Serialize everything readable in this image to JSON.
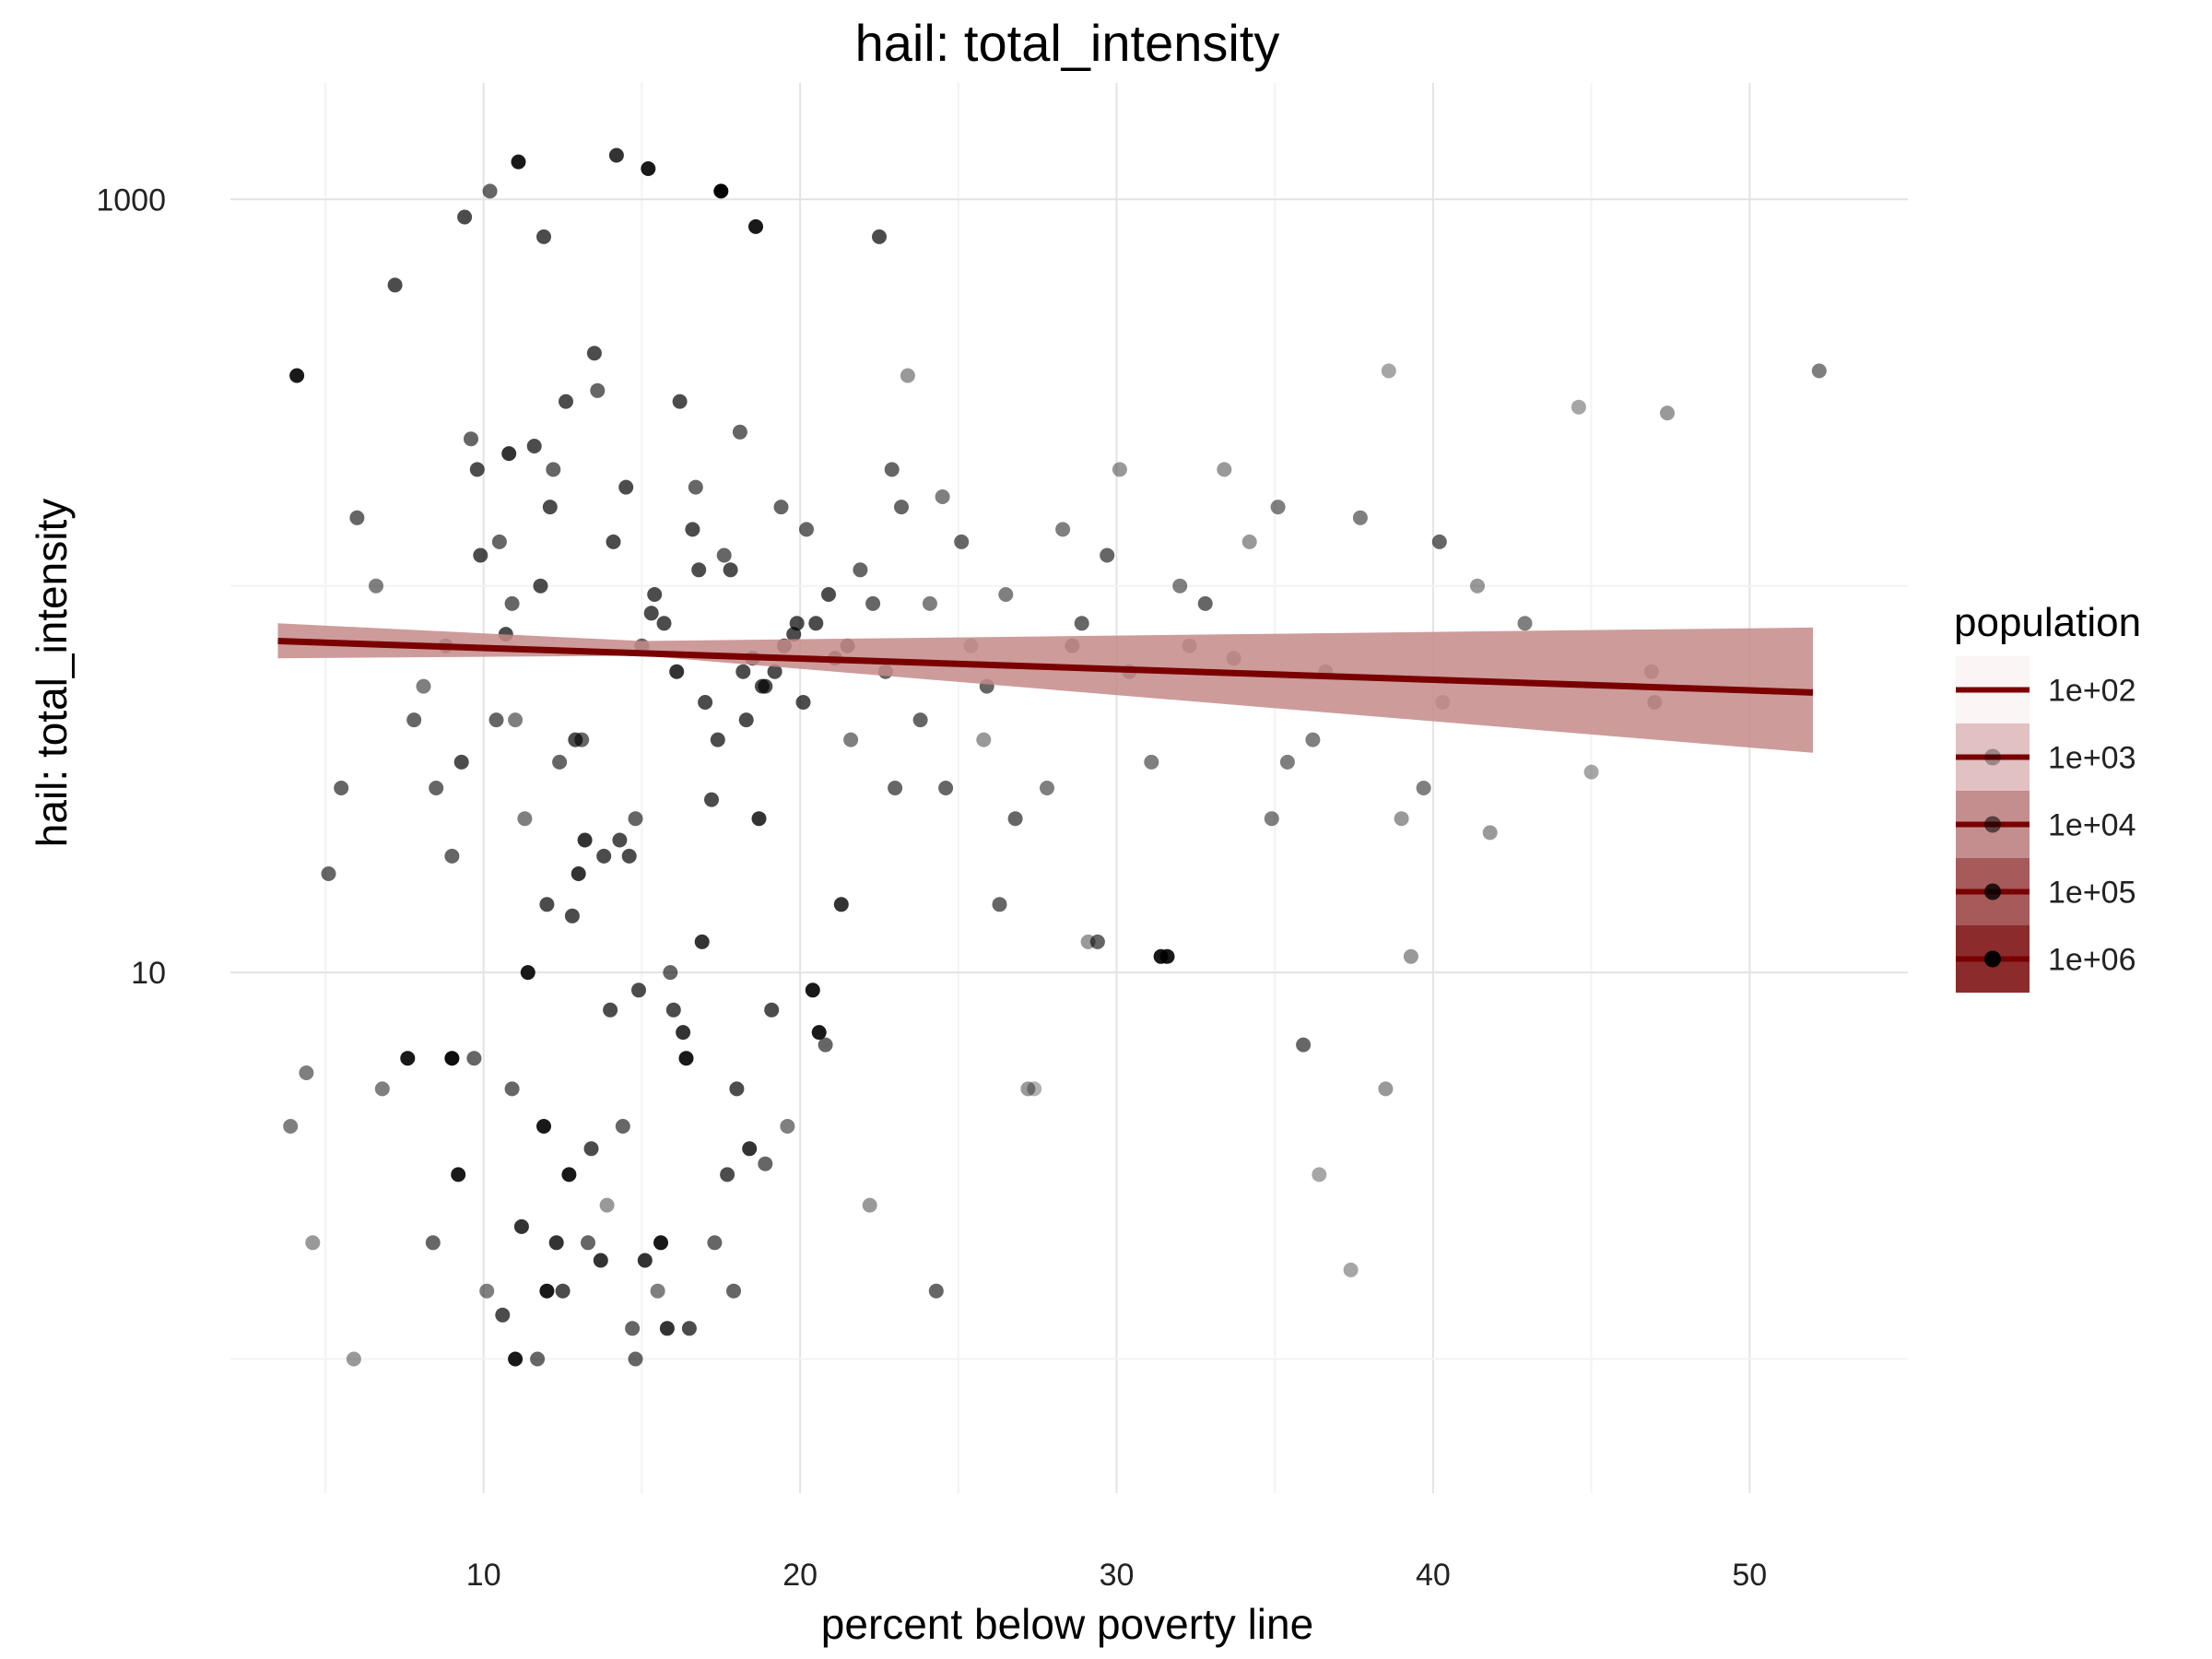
{
  "chart_data": {
    "type": "scatter",
    "title": "hail: total_intensity",
    "xlabel": "percent below poverty line",
    "ylabel": "hail: total_intensity",
    "x_scale": "linear",
    "y_scale": "log10",
    "xlim": [
      2,
      55
    ],
    "ylim": [
      0.45,
      2000
    ],
    "x_ticks": [
      10,
      20,
      30,
      40,
      50
    ],
    "x_tick_labels": [
      "10",
      "20",
      "30",
      "40",
      "50"
    ],
    "y_ticks": [
      10,
      1000
    ],
    "y_tick_labels": [
      "10",
      "1000"
    ],
    "y_minor_gridlines": [
      1,
      100
    ],
    "x_minor_gridlines": [
      5,
      15,
      25,
      35,
      45
    ],
    "grid": true,
    "legend": {
      "title": "population",
      "position": "right",
      "entries": [
        "1e+02",
        "1e+03",
        "1e+04",
        "1e+05",
        "1e+06"
      ],
      "point_alphas": [
        0.0,
        0.3,
        0.55,
        0.8,
        1.0
      ],
      "ribbon_colors": [
        "#fbf5f5",
        "#e1c1c1",
        "#c48e8e",
        "#a65a5a",
        "#8b2b2b"
      ]
    },
    "trend_line": {
      "color": "#7a0000",
      "points": [
        {
          "x": 3.5,
          "y": 72
        },
        {
          "x": 52,
          "y": 53
        }
      ],
      "ribbon_color": "#c58a8a",
      "ribbon_lower": [
        {
          "x": 3.5,
          "y": 65
        },
        {
          "x": 15,
          "y": 66
        },
        {
          "x": 52,
          "y": 37
        }
      ],
      "ribbon_upper": [
        {
          "x": 3.5,
          "y": 80
        },
        {
          "x": 15,
          "y": 72
        },
        {
          "x": 52,
          "y": 78
        }
      ]
    },
    "point_color": "#000000",
    "series": [
      {
        "name": "population",
        "x": [
          4.1,
          3.9,
          6.0,
          7.2,
          8.5,
          9.0,
          9.4,
          10.2,
          10.8,
          11.1,
          11.9,
          12.2,
          13.1,
          13.9,
          14.2,
          14.8,
          15.2,
          15.9,
          16.7,
          17.5,
          18.1,
          18.6,
          19.4,
          20.8,
          22.5,
          23.4,
          24.5,
          25.4,
          26.5,
          27.2,
          28.3,
          29.1,
          30.1,
          31.6,
          32.3,
          33.4,
          34.2,
          35.1,
          36.2,
          38.6,
          39.3,
          40.2,
          41.4,
          42.9,
          44.6,
          47.4,
          52.2,
          46.9,
          47.0,
          45.0,
          41.8,
          39.0,
          38.5,
          37.4,
          36.4,
          35.9,
          31.4,
          29.4,
          27.4,
          25.8,
          24.3,
          22.2,
          20.6,
          19.6,
          18.4,
          17.3,
          16.4,
          15.5,
          14.7,
          13.3,
          12.0,
          11.0,
          10.1,
          9.2,
          8.4,
          7.6,
          6.8,
          5.9,
          5.1,
          4.6,
          4.4,
          5.5,
          6.6,
          7.8,
          8.8,
          9.8,
          10.9,
          12.1,
          13.6,
          15.0,
          16.2,
          17.6,
          18.9,
          20.2,
          21.6,
          22.9,
          24.1,
          25.9,
          27.8,
          29.7,
          31.1,
          32.8,
          34.9,
          36.6,
          37.7,
          39.7,
          40.3,
          11.3,
          12.8,
          14.3,
          16.0,
          17.2,
          18.3,
          19.2,
          20.5,
          21.9,
          23.2,
          9.6,
          10.5,
          11.6,
          12.6,
          13.5,
          14.5,
          15.4,
          16.6,
          17.8,
          18.8,
          19.8,
          21.1,
          22.3,
          23.8,
          25.1,
          26.8,
          28.6,
          30.4,
          32.0,
          33.7,
          35.4,
          8.1,
          9.0,
          9.9,
          10.7,
          11.8,
          12.9,
          14.1,
          15.7,
          17.0,
          18.2,
          19.5,
          20.9,
          22.7,
          24.6,
          26.3,
          28.9,
          11.0,
          12.4,
          13.8,
          15.3,
          16.8,
          18.5,
          20.1,
          21.5,
          23.0,
          10.4,
          12.0,
          13.2,
          14.6,
          16.1,
          17.4,
          18.7,
          19.9,
          9.3,
          11.4,
          13.0,
          14.9,
          16.9,
          19.1,
          21.3,
          9.7,
          11.9,
          14.0,
          16.3,
          18.0,
          20.4,
          10.9,
          12.7,
          14.4,
          17.7,
          11.2,
          13.4,
          15.6,
          18.9,
          12.3,
          15.1,
          17.9,
          10.6,
          13.7,
          16.5,
          12.5,
          15.8,
          11.7,
          14.8
        ],
        "y": [
          350,
          4,
          150,
          600,
          30,
          6,
          900,
          1050,
          220,
          1250,
          800,
          200,
          40,
          2.5,
          1300,
          25,
          1200,
          10,
          180,
          1050,
          250,
          850,
          160,
          6.5,
          800,
          350,
          170,
          70,
          95,
          5,
          140,
          12,
          200,
          11,
          70,
          200,
          130,
          160,
          40,
          360,
          11,
          130,
          100,
          80,
          290,
          280,
          360,
          60,
          50,
          33,
          23,
          25,
          5,
          1.7,
          3,
          6.5,
          11,
          12,
          5,
          40,
          1.5,
          2.5,
          7,
          4,
          3.5,
          2.0,
          6,
          1.5,
          1.2,
          2,
          1.5,
          1.0,
          1.5,
          3,
          2,
          6,
          5,
          1,
          18,
          2,
          5.5,
          30,
          100,
          45,
          70,
          200,
          90,
          160,
          320,
          70,
          300,
          120,
          55,
          140,
          40,
          200,
          90,
          55,
          30,
          120,
          35,
          90,
          25,
          60,
          150,
          30,
          50,
          25,
          14,
          22,
          8,
          28,
          45,
          60,
          80,
          110,
          160,
          240,
          130,
          230,
          300,
          400,
          180,
          95,
          140,
          110,
          55,
          75,
          65,
          90,
          45,
          130,
          25,
          70,
          60,
          100,
          65,
          35,
          55,
          20,
          120,
          75,
          100,
          40,
          130,
          80,
          50,
          60,
          70,
          95,
          60,
          30,
          15,
          80,
          45,
          35,
          20,
          85,
          110,
          65,
          50,
          70,
          30,
          45,
          15,
          22,
          20,
          60,
          40,
          25,
          80,
          35,
          10,
          18,
          9,
          12,
          8,
          15,
          6,
          4,
          8,
          7,
          5,
          9,
          5,
          3,
          4,
          3,
          2.2,
          3.5,
          2.0,
          3.2,
          2.0,
          1.8,
          1.5,
          1.3,
          1.8,
          1.2,
          1.5,
          1.2,
          1.0,
          1.0
        ],
        "alpha": [
          0.9,
          0.5,
          0.6,
          0.7,
          0.6,
          0.95,
          0.7,
          0.6,
          0.8,
          0.9,
          0.7,
          0.6,
          0.6,
          0.4,
          0.8,
          0.6,
          0.9,
          0.6,
          0.6,
          1.0,
          0.6,
          0.9,
          0.6,
          0.6,
          0.7,
          0.4,
          0.5,
          0.4,
          0.5,
          0.4,
          0.5,
          0.4,
          0.4,
          0.9,
          0.5,
          0.4,
          0.4,
          0.5,
          0.5,
          0.35,
          0.4,
          0.6,
          0.4,
          0.5,
          0.35,
          0.4,
          0.5,
          0.5,
          0.6,
          0.35,
          0.4,
          0.4,
          0.4,
          0.35,
          0.35,
          0.6,
          0.9,
          0.6,
          0.3,
          0.4,
          0.6,
          0.4,
          0.9,
          0.5,
          0.8,
          0.6,
          0.9,
          0.5,
          0.6,
          0.6,
          0.9,
          0.9,
          0.5,
          0.9,
          0.6,
          0.9,
          0.5,
          0.4,
          0.6,
          0.4,
          0.5,
          0.6,
          0.5,
          0.6,
          0.6,
          0.7,
          0.6,
          0.7,
          0.6,
          0.6,
          0.7,
          0.6,
          0.7,
          0.6,
          0.5,
          0.6,
          0.5,
          0.6,
          0.5,
          0.6,
          0.5,
          0.6,
          0.5,
          0.5,
          0.5,
          0.5,
          0.4,
          0.5,
          0.7,
          0.7,
          0.7,
          0.7,
          0.7,
          0.7,
          0.7,
          0.6,
          0.6,
          0.6,
          0.6,
          0.7,
          0.7,
          0.7,
          0.7,
          0.7,
          0.7,
          0.7,
          0.7,
          0.7,
          0.7,
          0.6,
          0.6,
          0.6,
          0.6,
          0.6,
          0.6,
          0.5,
          0.5,
          0.5,
          0.5,
          0.6,
          0.7,
          0.7,
          0.7,
          0.7,
          0.7,
          0.7,
          0.7,
          0.7,
          0.7,
          0.7,
          0.6,
          0.6,
          0.6,
          0.6,
          0.5,
          0.6,
          0.7,
          0.7,
          0.7,
          0.7,
          0.7,
          0.7,
          0.6,
          0.6,
          0.7,
          0.8,
          0.7,
          0.8,
          0.7,
          0.8,
          0.7,
          0.7,
          0.9,
          0.8,
          0.7,
          0.8,
          0.7,
          0.8,
          0.6,
          0.9,
          0.7,
          0.8,
          0.7,
          0.9,
          0.6,
          0.9,
          0.6,
          0.7,
          0.8,
          0.7,
          0.9,
          0.6,
          0.8,
          0.8,
          0.6,
          0.7,
          0.8,
          0.7,
          0.7,
          0.8,
          0.6,
          0.6,
          0.8
        ]
      }
    ]
  }
}
